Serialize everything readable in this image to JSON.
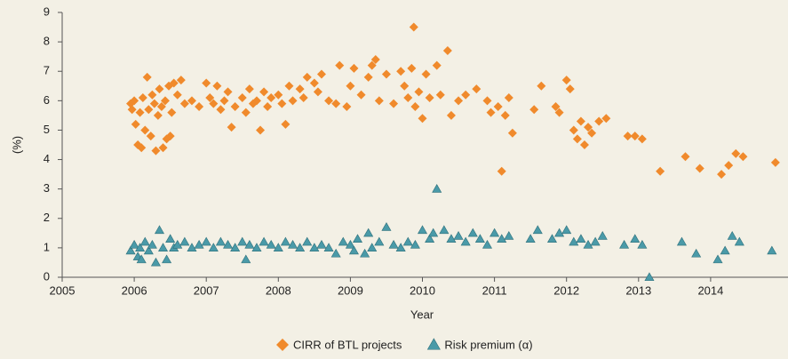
{
  "chart_data": {
    "type": "scatter",
    "x_label": "Year",
    "y_label": "(%)",
    "xlim": [
      2005,
      2015
    ],
    "ylim": [
      0,
      9
    ],
    "xticks": [
      2005,
      2006,
      2007,
      2008,
      2009,
      2010,
      2011,
      2012,
      2013,
      2014
    ],
    "yticks": [
      0,
      1,
      2,
      3,
      4,
      5,
      6,
      7,
      8,
      9
    ],
    "grid": false,
    "series": [
      {
        "name": "CIRR of BTL projects",
        "color": "#f08a2c",
        "marker": "diamond",
        "x": [
          2005.95,
          2005.97,
          2006.0,
          2006.02,
          2006.05,
          2006.08,
          2006.1,
          2006.12,
          2006.15,
          2006.18,
          2006.2,
          2006.23,
          2006.25,
          2006.28,
          2006.3,
          2006.33,
          2006.35,
          2006.38,
          2006.4,
          2006.43,
          2006.45,
          2006.48,
          2006.5,
          2006.52,
          2006.55,
          2006.6,
          2006.65,
          2006.7,
          2006.8,
          2006.9,
          2007.0,
          2007.05,
          2007.1,
          2007.15,
          2007.2,
          2007.25,
          2007.3,
          2007.35,
          2007.4,
          2007.5,
          2007.55,
          2007.6,
          2007.65,
          2007.7,
          2007.75,
          2007.8,
          2007.85,
          2007.9,
          2008.0,
          2008.05,
          2008.1,
          2008.15,
          2008.2,
          2008.3,
          2008.35,
          2008.4,
          2008.5,
          2008.55,
          2008.6,
          2008.7,
          2008.8,
          2008.85,
          2008.95,
          2009.0,
          2009.05,
          2009.15,
          2009.25,
          2009.3,
          2009.35,
          2009.4,
          2009.5,
          2009.6,
          2009.7,
          2009.75,
          2009.8,
          2009.85,
          2009.88,
          2009.9,
          2009.95,
          2010.0,
          2010.05,
          2010.1,
          2010.2,
          2010.25,
          2010.35,
          2010.4,
          2010.5,
          2010.6,
          2010.75,
          2010.9,
          2010.95,
          2011.05,
          2011.1,
          2011.15,
          2011.2,
          2011.25,
          2011.55,
          2011.65,
          2011.85,
          2011.9,
          2012.0,
          2012.05,
          2012.1,
          2012.15,
          2012.2,
          2012.25,
          2012.3,
          2012.35,
          2012.45,
          2012.55,
          2012.85,
          2012.95,
          2013.05,
          2013.3,
          2013.65,
          2013.85,
          2014.15,
          2014.25,
          2014.35,
          2014.45,
          2014.9
        ],
        "values": [
          5.9,
          5.7,
          6.0,
          5.2,
          4.5,
          5.6,
          4.4,
          6.1,
          5.0,
          6.8,
          5.7,
          4.8,
          6.2,
          5.9,
          4.3,
          5.5,
          6.4,
          5.8,
          4.4,
          6.0,
          4.7,
          6.5,
          4.8,
          5.6,
          6.6,
          6.2,
          6.7,
          5.9,
          6.0,
          5.8,
          6.6,
          6.1,
          5.9,
          6.5,
          5.7,
          6.0,
          6.3,
          5.1,
          5.8,
          6.1,
          5.6,
          6.4,
          5.9,
          6.0,
          5.0,
          6.3,
          5.8,
          6.1,
          6.2,
          5.9,
          5.2,
          6.5,
          6.0,
          6.4,
          6.1,
          6.8,
          6.6,
          6.3,
          6.9,
          6.0,
          5.9,
          7.2,
          5.8,
          6.5,
          7.1,
          6.2,
          6.8,
          7.2,
          7.4,
          6.0,
          6.9,
          5.9,
          7.0,
          6.5,
          6.1,
          7.1,
          8.5,
          5.8,
          6.3,
          5.4,
          6.9,
          6.1,
          7.2,
          6.2,
          7.7,
          5.5,
          6.0,
          6.2,
          6.4,
          6.0,
          5.6,
          5.8,
          3.6,
          5.5,
          6.1,
          4.9,
          5.7,
          6.5,
          5.8,
          5.6,
          6.7,
          6.4,
          5.0,
          4.7,
          5.3,
          4.5,
          5.1,
          4.9,
          5.3,
          5.4,
          4.8,
          4.8,
          4.7,
          3.6,
          4.1,
          3.7,
          3.5,
          3.8,
          4.2,
          4.1,
          3.9
        ]
      },
      {
        "name": "Risk premium (α)",
        "color": "#4a9aa8",
        "marker": "triangle",
        "x": [
          2005.95,
          2006.0,
          2006.05,
          2006.08,
          2006.1,
          2006.15,
          2006.2,
          2006.25,
          2006.3,
          2006.35,
          2006.4,
          2006.45,
          2006.5,
          2006.55,
          2006.6,
          2006.7,
          2006.8,
          2006.9,
          2007.0,
          2007.1,
          2007.2,
          2007.3,
          2007.4,
          2007.5,
          2007.55,
          2007.6,
          2007.7,
          2007.8,
          2007.9,
          2008.0,
          2008.1,
          2008.2,
          2008.3,
          2008.4,
          2008.5,
          2008.6,
          2008.7,
          2008.8,
          2008.9,
          2009.0,
          2009.05,
          2009.1,
          2009.2,
          2009.25,
          2009.3,
          2009.4,
          2009.5,
          2009.6,
          2009.7,
          2009.8,
          2009.9,
          2010.0,
          2010.1,
          2010.15,
          2010.2,
          2010.3,
          2010.4,
          2010.5,
          2010.6,
          2010.7,
          2010.8,
          2010.9,
          2011.0,
          2011.1,
          2011.2,
          2011.5,
          2011.6,
          2011.8,
          2011.9,
          2012.0,
          2012.1,
          2012.2,
          2012.3,
          2012.4,
          2012.5,
          2012.8,
          2012.95,
          2013.05,
          2013.15,
          2013.6,
          2013.8,
          2014.1,
          2014.2,
          2014.3,
          2014.4,
          2014.85
        ],
        "values": [
          0.9,
          1.1,
          0.7,
          1.0,
          0.6,
          1.2,
          0.9,
          1.1,
          0.5,
          1.6,
          1.0,
          0.6,
          1.3,
          1.0,
          1.1,
          1.2,
          1.0,
          1.1,
          1.2,
          1.0,
          1.2,
          1.1,
          1.0,
          1.2,
          0.6,
          1.1,
          1.0,
          1.2,
          1.1,
          1.0,
          1.2,
          1.1,
          1.0,
          1.2,
          1.0,
          1.1,
          1.0,
          0.8,
          1.2,
          1.1,
          0.9,
          1.3,
          0.8,
          1.5,
          1.0,
          1.2,
          1.7,
          1.1,
          1.0,
          1.2,
          1.1,
          1.6,
          1.3,
          1.5,
          3.0,
          1.6,
          1.3,
          1.4,
          1.2,
          1.5,
          1.3,
          1.1,
          1.5,
          1.3,
          1.4,
          1.3,
          1.6,
          1.3,
          1.5,
          1.6,
          1.2,
          1.3,
          1.1,
          1.2,
          1.4,
          1.1,
          1.3,
          1.1,
          0.0,
          1.2,
          0.8,
          0.6,
          0.9,
          1.4,
          1.2,
          0.9
        ]
      }
    ]
  }
}
